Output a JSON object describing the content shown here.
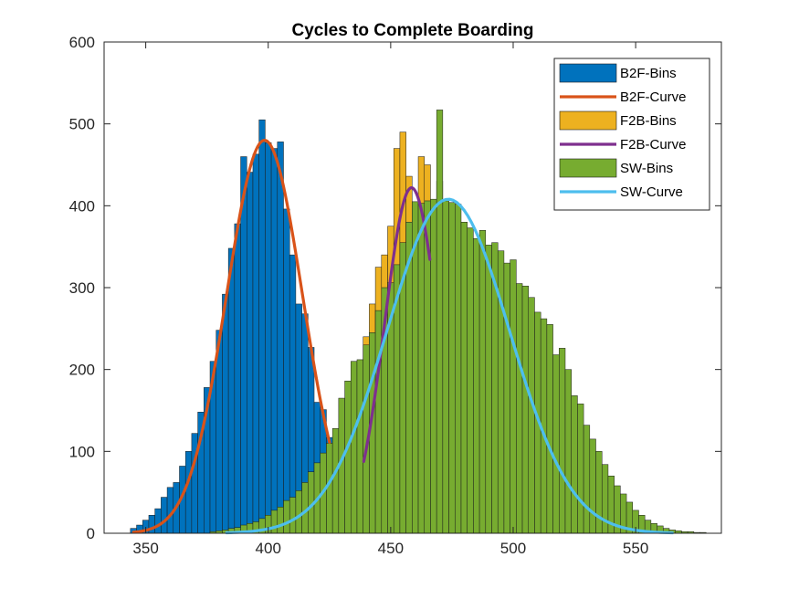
{
  "chart_data": {
    "type": "histogram",
    "title": "Cycles to Complete Boarding",
    "xlabel": "",
    "ylabel": "",
    "xlim": [
      333,
      585
    ],
    "ylim": [
      0,
      600
    ],
    "xticks": [
      350,
      400,
      450,
      500,
      550
    ],
    "yticks": [
      0,
      100,
      200,
      300,
      400,
      500,
      600
    ],
    "grid": false,
    "legend_position": "top-right",
    "series": [
      {
        "name": "B2F-Bins",
        "kind": "bins",
        "color": "#0072BD",
        "bin_width": 2.5,
        "x": [
          345,
          347.5,
          350,
          352.5,
          355,
          357.5,
          360,
          362.5,
          365,
          367.5,
          370,
          372.5,
          375,
          377.5,
          380,
          382.5,
          385,
          387.5,
          390,
          392.5,
          395,
          397.5,
          400,
          402.5,
          405,
          407.5,
          410,
          412.5,
          415,
          417.5,
          420,
          422.5,
          425,
          427.5,
          430
        ],
        "values": [
          6,
          10,
          16,
          22,
          30,
          44,
          56,
          62,
          82,
          100,
          122,
          148,
          178,
          210,
          248,
          292,
          348,
          378,
          460,
          441,
          463,
          505,
          477,
          470,
          478,
          396,
          340,
          280,
          268,
          227,
          160,
          151,
          117,
          48,
          22
        ]
      },
      {
        "name": "B2F-Curve",
        "kind": "curve",
        "color": "#D95319",
        "mean": 398.5,
        "sd": 15.5,
        "peak": 480,
        "range": [
          345,
          425
        ]
      },
      {
        "name": "F2B-Bins",
        "kind": "bins",
        "color": "#EDB120",
        "bin_width": 2.5,
        "x": [
          435,
          437.5,
          440,
          442.5,
          445,
          447.5,
          450,
          452.5,
          455,
          457.5,
          460,
          462.5,
          465,
          467.5,
          470,
          472.5
        ],
        "values": [
          135,
          165,
          240,
          280,
          325,
          340,
          375,
          470,
          490,
          436,
          395,
          460,
          450,
          400,
          430,
          370
        ]
      },
      {
        "name": "F2B-Curve",
        "kind": "curve",
        "color": "#7E2F8E",
        "mean": 458.5,
        "sd": 11,
        "peak": 422,
        "range": [
          439,
          466
        ]
      },
      {
        "name": "SW-Bins",
        "kind": "bins",
        "color": "#77AC30",
        "bin_width": 2.5,
        "x": [
          377.5,
          380,
          382.5,
          385,
          387.5,
          390,
          392.5,
          395,
          397.5,
          400,
          402.5,
          405,
          407.5,
          410,
          412.5,
          415,
          417.5,
          420,
          422.5,
          425,
          427.5,
          430,
          432.5,
          435,
          437.5,
          440,
          442.5,
          445,
          447.5,
          450,
          452.5,
          455,
          457.5,
          460,
          462.5,
          465,
          467.5,
          470,
          472.5,
          475,
          477.5,
          480,
          482.5,
          485,
          487.5,
          490,
          492.5,
          495,
          497.5,
          500,
          502.5,
          505,
          507.5,
          510,
          512.5,
          515,
          517.5,
          520,
          522.5,
          525,
          527.5,
          530,
          532.5,
          535,
          537.5,
          540,
          542.5,
          545,
          547.5,
          550,
          552.5,
          555,
          557.5,
          560,
          562.5,
          565,
          567.5,
          570,
          572.5,
          575,
          577.5
        ],
        "values": [
          2,
          3,
          4,
          6,
          7,
          10,
          12,
          14,
          18,
          22,
          28,
          32,
          40,
          44,
          52,
          62,
          75,
          86,
          98,
          110,
          128,
          165,
          186,
          210,
          212,
          230,
          245,
          272,
          300,
          306,
          328,
          355,
          380,
          405,
          403,
          406,
          408,
          517,
          406,
          404,
          402,
          380,
          373,
          360,
          370,
          352,
          355,
          345,
          330,
          334,
          305,
          302,
          288,
          270,
          262,
          255,
          218,
          226,
          200,
          168,
          158,
          132,
          115,
          100,
          84,
          70,
          58,
          48,
          38,
          28,
          22,
          16,
          12,
          9,
          6,
          4,
          3,
          2,
          2,
          1,
          1
        ]
      },
      {
        "name": "SW-Curve",
        "kind": "curve",
        "color": "#4DBEEE",
        "mean": 473.5,
        "sd": 25,
        "peak": 408,
        "range": [
          383,
          565
        ]
      }
    ]
  }
}
